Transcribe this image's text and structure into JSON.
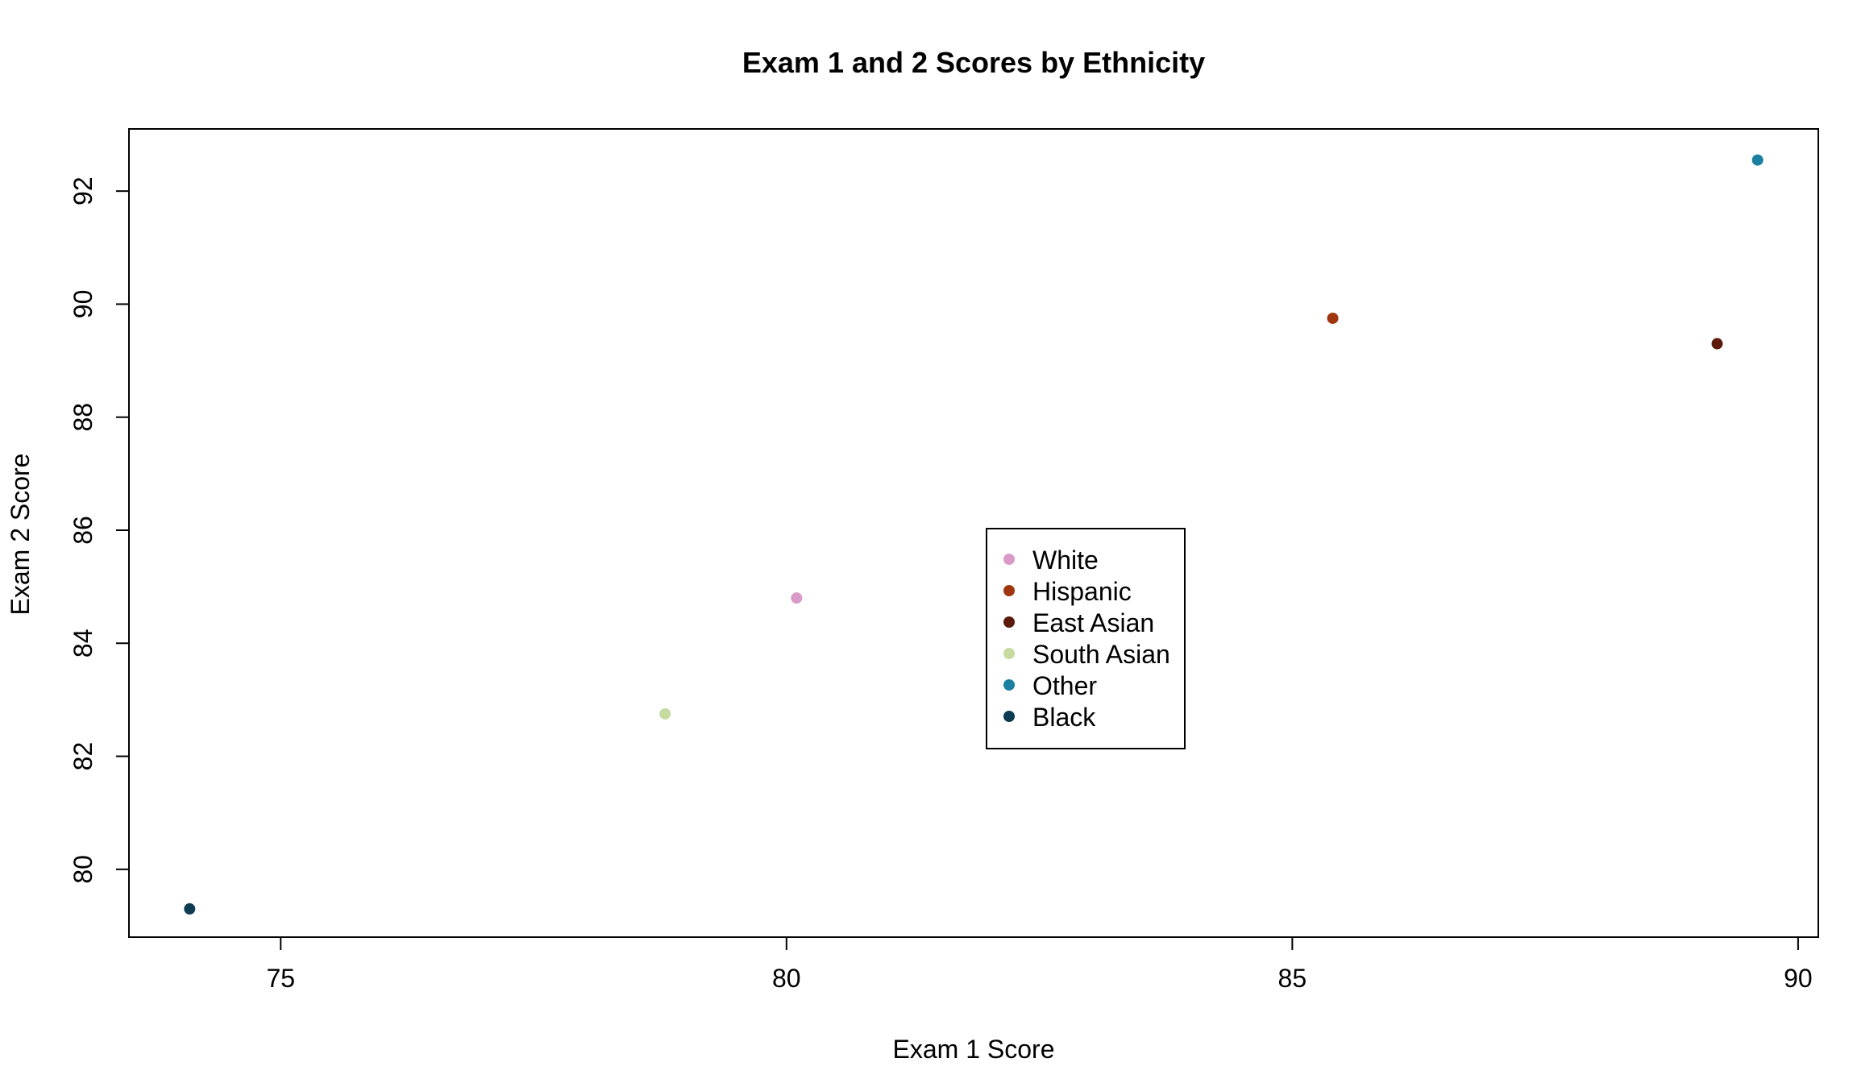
{
  "chart_data": {
    "type": "scatter",
    "title": "Exam 1 and 2 Scores by Ethnicity",
    "xlabel": "Exam 1 Score",
    "ylabel": "Exam 2 Score",
    "xlim": [
      73.5,
      90.2
    ],
    "ylim": [
      78.8,
      93.1
    ],
    "x_ticks": [
      75,
      80,
      85,
      90
    ],
    "y_ticks": [
      80,
      82,
      84,
      86,
      88,
      90,
      92
    ],
    "grid": false,
    "legend_position": "center",
    "series": [
      {
        "name": "White",
        "color": "#d99ac8",
        "points": [
          {
            "x": 80.1,
            "y": 84.8
          }
        ]
      },
      {
        "name": "Hispanic",
        "color": "#a0360f",
        "points": [
          {
            "x": 85.4,
            "y": 89.75
          }
        ]
      },
      {
        "name": "East Asian",
        "color": "#5c1a0b",
        "points": [
          {
            "x": 89.2,
            "y": 89.3
          }
        ]
      },
      {
        "name": "South Asian",
        "color": "#c6dba0",
        "points": [
          {
            "x": 78.8,
            "y": 82.75
          }
        ]
      },
      {
        "name": "Other",
        "color": "#1a7fa0",
        "points": [
          {
            "x": 89.6,
            "y": 92.55
          }
        ]
      },
      {
        "name": "Black",
        "color": "#0d3b52",
        "points": [
          {
            "x": 74.1,
            "y": 79.3
          }
        ]
      }
    ]
  }
}
